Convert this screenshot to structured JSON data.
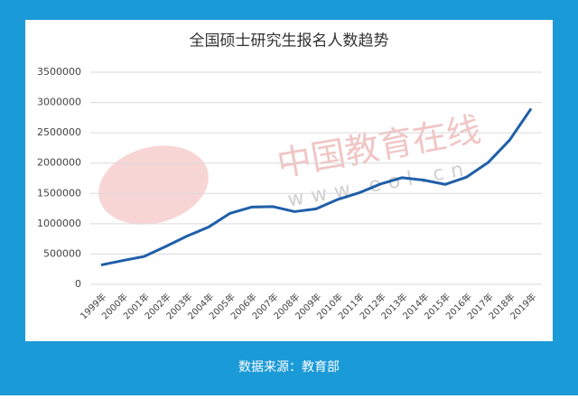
{
  "chart_data": {
    "type": "line",
    "title": "全国硕士研究生报名人数趋势",
    "categories": [
      "1999年",
      "2000年",
      "2001年",
      "2002年",
      "2003年",
      "2004年",
      "2005年",
      "2006年",
      "2007年",
      "2008年",
      "2009年",
      "2010年",
      "2011年",
      "2012年",
      "2013年",
      "2014年",
      "2015年",
      "2016年",
      "2017年",
      "2018年",
      "2019年"
    ],
    "series": [
      {
        "name": "报名人数",
        "color": "#1f5fa8",
        "values": [
          319000,
          392000,
          460000,
          624000,
          797000,
          945000,
          1172000,
          1275000,
          1282000,
          1200000,
          1246000,
          1400000,
          1510000,
          1656000,
          1760000,
          1720000,
          1649000,
          1770000,
          2010000,
          2380000,
          2900000
        ]
      }
    ],
    "ylim": [
      0,
      3500000
    ],
    "yticks": [
      0,
      500000,
      1000000,
      1500000,
      2000000,
      2500000,
      3000000,
      3500000
    ],
    "grid": true,
    "source": "数据来源：教育部",
    "watermark": "中国教育在线",
    "watermark_url": "www.eol.cn"
  }
}
